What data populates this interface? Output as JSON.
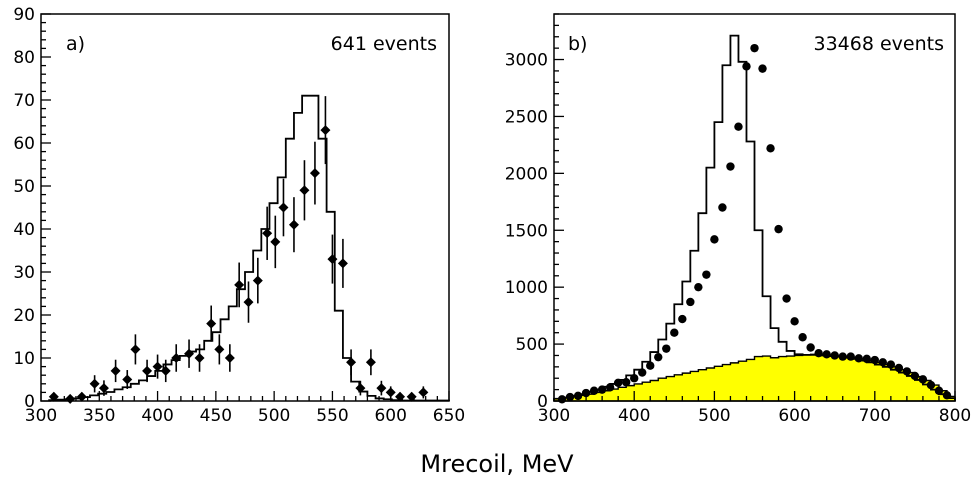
{
  "xlabel": "Mrecoil, MeV",
  "chart_data": [
    {
      "type": "histogram",
      "panel_label": "a)",
      "annotation": "641 events",
      "xlim": [
        300,
        650
      ],
      "ylim": [
        0,
        90
      ],
      "xticks": [
        300,
        350,
        400,
        450,
        500,
        550,
        600,
        650
      ],
      "yticks": [
        0,
        10,
        20,
        30,
        40,
        50,
        60,
        70,
        80,
        90
      ],
      "grid": false,
      "series": [
        {
          "style": "step-line",
          "bin_width": 7,
          "bin_edges_start": 307,
          "values": [
            0.2,
            0.3,
            0.4,
            0.6,
            0.9,
            1.3,
            1.7,
            2.1,
            2.7,
            3.2,
            4,
            4.8,
            5.8,
            7,
            8.5,
            9.5,
            10.5,
            11.5,
            12,
            14,
            16,
            19,
            22,
            26,
            30,
            35,
            40,
            46,
            52,
            61,
            67,
            71,
            71,
            61,
            44,
            21,
            10,
            4.5,
            2.2,
            1.2,
            0.6,
            0.4,
            0.2,
            0.1,
            0.1,
            0.1,
            0.1,
            0.1,
            0.1
          ]
        },
        {
          "style": "points-with-errors",
          "x": [
            311,
            325,
            335,
            346,
            354,
            364,
            374,
            381,
            391,
            400,
            407,
            416,
            427,
            436,
            446,
            453,
            462,
            470,
            478,
            486,
            494,
            501,
            508,
            517,
            526,
            535,
            544,
            550,
            559,
            566,
            574,
            583,
            592,
            600,
            608,
            618,
            628
          ],
          "y": [
            1,
            0.5,
            1,
            4,
            3,
            7,
            5,
            12,
            7,
            8,
            7,
            10,
            11,
            10,
            18,
            12,
            10,
            27,
            23,
            28,
            39,
            37,
            45,
            41,
            49,
            53,
            63,
            33,
            32,
            9,
            3,
            9,
            3,
            2,
            1,
            1,
            2
          ],
          "err": [
            1,
            0.7,
            1,
            2,
            1.8,
            2.6,
            2.2,
            3.5,
            2.6,
            2.8,
            2.6,
            3.2,
            3.3,
            3.2,
            4.2,
            3.5,
            3.2,
            5.2,
            4.8,
            5.3,
            6.2,
            6.1,
            6.7,
            6.4,
            7,
            7.3,
            7.9,
            5.7,
            5.7,
            3,
            1.7,
            3,
            1.7,
            1.4,
            1,
            1,
            1.4
          ]
        }
      ]
    },
    {
      "type": "histogram",
      "panel_label": "b)",
      "annotation": "33468 events",
      "xlim": [
        300,
        800
      ],
      "ylim": [
        0,
        3400
      ],
      "xticks": [
        300,
        400,
        500,
        600,
        700,
        800
      ],
      "yticks": [
        0,
        500,
        1000,
        1500,
        2000,
        2500,
        3000
      ],
      "grid": false,
      "series": [
        {
          "style": "filled-step",
          "fill": "#ffff00",
          "bin_width": 10,
          "bin_edges_start": 300,
          "values": [
            20,
            30,
            40,
            50,
            60,
            75,
            90,
            105,
            120,
            135,
            150,
            165,
            180,
            200,
            215,
            230,
            245,
            260,
            275,
            290,
            305,
            320,
            335,
            350,
            365,
            390,
            395,
            380,
            390,
            395,
            400,
            405,
            410,
            405,
            400,
            395,
            390,
            380,
            370,
            355,
            340,
            320,
            300,
            275,
            250,
            215,
            180,
            140,
            90,
            40
          ]
        },
        {
          "style": "step-line",
          "bin_width": 10,
          "bin_edges_start": 300,
          "values": [
            20,
            30,
            45,
            60,
            80,
            100,
            125,
            150,
            185,
            225,
            275,
            345,
            430,
            540,
            680,
            850,
            1050,
            1320,
            1650,
            2050,
            2450,
            2950,
            3210,
            2980,
            2280,
            1500,
            920,
            640,
            520,
            440,
            410,
            405,
            405,
            400,
            395,
            390,
            380,
            370,
            355,
            340,
            320,
            300,
            275,
            250,
            220,
            185,
            145,
            100,
            60,
            25
          ]
        },
        {
          "style": "points",
          "x": [
            310,
            320,
            330,
            340,
            350,
            360,
            370,
            380,
            390,
            400,
            410,
            420,
            430,
            440,
            450,
            460,
            470,
            480,
            490,
            500,
            510,
            520,
            530,
            540,
            550,
            560,
            570,
            580,
            590,
            600,
            610,
            620,
            630,
            640,
            650,
            660,
            670,
            680,
            690,
            700,
            710,
            720,
            730,
            740,
            750,
            760,
            770,
            780,
            790
          ],
          "y": [
            15,
            35,
            45,
            70,
            90,
            100,
            120,
            160,
            165,
            200,
            250,
            310,
            385,
            460,
            600,
            720,
            870,
            1000,
            1110,
            1420,
            1700,
            2060,
            2410,
            2940,
            3100,
            2920,
            2220,
            1510,
            900,
            700,
            560,
            470,
            420,
            410,
            400,
            390,
            390,
            375,
            370,
            360,
            340,
            320,
            290,
            260,
            220,
            190,
            140,
            90,
            50
          ]
        }
      ]
    }
  ]
}
